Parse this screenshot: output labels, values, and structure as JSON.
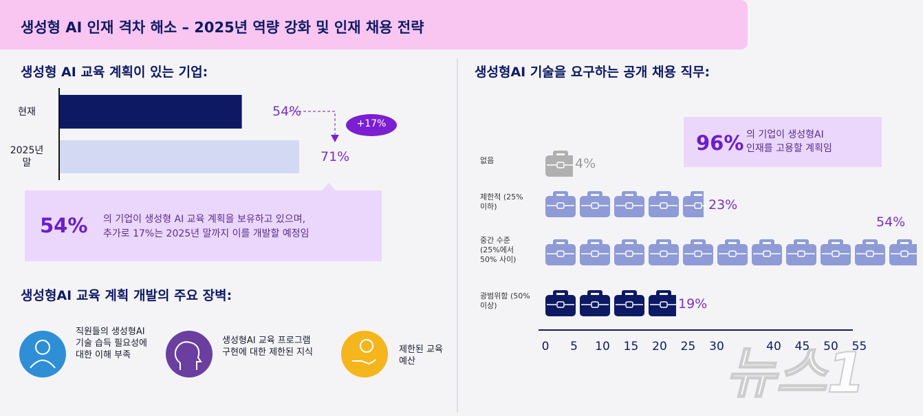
{
  "header": {
    "title": "생성형 AI 인재 격차 해소 – 2025년 역량 강화 및 인재 채용 전략"
  },
  "chart_data": [
    {
      "type": "bar",
      "title": "생성형 AI 교육 계획이 있는 기업:",
      "categories": [
        "현재",
        "2025년 말"
      ],
      "values": [
        54,
        71
      ],
      "value_labels": [
        "54%",
        "71%"
      ],
      "colors": [
        "#0d1a63",
        "#d3d9f2"
      ],
      "annotation": "+17%"
    },
    {
      "type": "pictogram",
      "title": "생성형AI 기술을 요구하는 공개 채용 직무:",
      "categories": [
        "없음",
        "제한적 (25% 이하)",
        "중간 수준 (25%에서 50% 사이)",
        "광범위함 (50%이상)"
      ],
      "values": [
        4,
        23,
        54,
        19
      ],
      "value_labels": [
        "4%",
        "23%",
        "54%",
        "19%"
      ],
      "colors": [
        "#b0b0b0",
        "#8e9bd6",
        "#8e9bd6",
        "#0d1a63"
      ],
      "xticks": [
        0,
        5,
        10,
        15,
        20,
        25,
        30,
        40,
        45,
        50,
        55
      ]
    }
  ],
  "callout_left": {
    "value": "54%",
    "lines": [
      "의 기업이 생성형 AI 교육 계획을 보유하고 있으며,",
      "추가로 17%는 2025년 말까지 이를 개발할 예정임"
    ]
  },
  "callout_right": {
    "value": "96%",
    "lines": [
      "의 기업이 생성형AI",
      "인재를 고용할 계획임"
    ]
  },
  "barriers": {
    "title": "생성형AI 교육 계획 개발의 주요 장벽:",
    "items": [
      "직원들의 생성형AI 기술 습득 필요성에 대한 이해 부족",
      "생성형AI 교육 프로그램 구현에 대한 제한된 지식",
      "제한된 교육 예산"
    ]
  },
  "watermark": "뉴스1"
}
